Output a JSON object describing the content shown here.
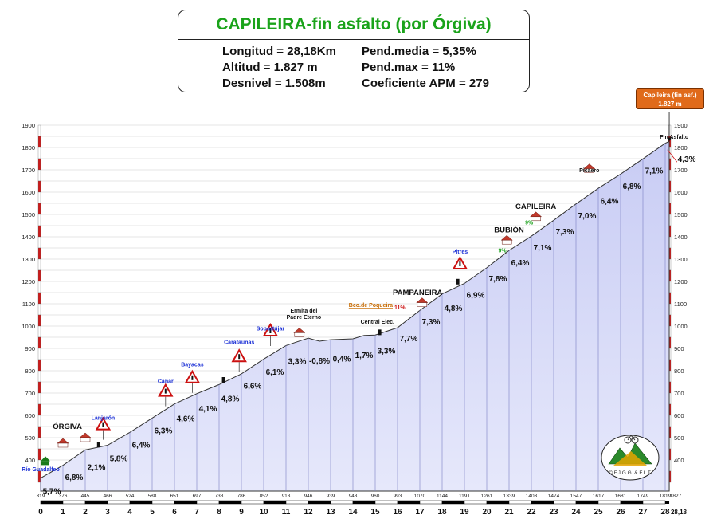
{
  "header": {
    "title": "CAPILEIRA-fin asfalto (por Órgiva)",
    "stats": [
      "Longitud = 28,18Km",
      "Pend.media = 5,35%",
      "Altitud =  1.827 m",
      "Pend.max = 11%",
      "Desnivel = 1.508m",
      "Coeficiente APM = 279"
    ]
  },
  "summit_badge": {
    "line1": "Capileira (fin asf.)",
    "line2": "1.827 m"
  },
  "copyright": "© F.J.G.G. & F.L.T.",
  "colors": {
    "title": "#1aa31a",
    "fill": "#cfd3f7",
    "outline": "#333333",
    "blue_label": "#1a2fd6",
    "green_label": "#18a018",
    "red_label": "#cc1111",
    "orange_label": "#c76a00",
    "badge": "#e06a1a"
  },
  "chart_data": {
    "type": "area",
    "title": "CAPILEIRA-fin asfalto (por Órgiva)",
    "xlim": [
      0,
      28.18
    ],
    "ylim": [
      200,
      1900
    ],
    "y_ticks": [
      400,
      500,
      600,
      700,
      800,
      900,
      1000,
      1100,
      1200,
      1300,
      1400,
      1500,
      1600,
      1700,
      1800,
      1900
    ],
    "x_ticks": [
      0,
      1,
      2,
      3,
      4,
      5,
      6,
      7,
      8,
      9,
      10,
      11,
      12,
      13,
      14,
      15,
      16,
      17,
      18,
      19,
      20,
      21,
      22,
      23,
      24,
      25,
      26,
      27,
      28
    ],
    "x_end_label": "28,18",
    "km_altitudes": [
      319,
      376,
      445,
      466,
      524,
      588,
      651,
      697,
      738,
      786,
      852,
      913,
      946,
      939,
      943,
      960,
      993,
      1070,
      1144,
      1191,
      1261,
      1339,
      1403,
      1474,
      1547,
      1617,
      1681,
      1749,
      1819
    ],
    "end_altitude_label": "1827",
    "profile": [
      [
        0,
        319
      ],
      [
        1,
        376
      ],
      [
        2,
        445
      ],
      [
        3,
        466
      ],
      [
        4,
        524
      ],
      [
        5,
        588
      ],
      [
        6,
        651
      ],
      [
        7,
        697
      ],
      [
        8,
        738
      ],
      [
        9,
        786
      ],
      [
        10,
        852
      ],
      [
        11,
        913
      ],
      [
        12,
        946
      ],
      [
        12.5,
        932
      ],
      [
        13,
        939
      ],
      [
        14,
        943
      ],
      [
        14.5,
        958
      ],
      [
        15,
        960
      ],
      [
        16,
        993
      ],
      [
        17,
        1070
      ],
      [
        18,
        1144
      ],
      [
        19,
        1191
      ],
      [
        20,
        1261
      ],
      [
        21,
        1339
      ],
      [
        22,
        1403
      ],
      [
        23,
        1474
      ],
      [
        24,
        1547
      ],
      [
        25,
        1617
      ],
      [
        26,
        1681
      ],
      [
        27,
        1749
      ],
      [
        28,
        1819
      ],
      [
        28.18,
        1827
      ]
    ],
    "gradients": [
      {
        "km": 0.5,
        "label": "5,7%"
      },
      {
        "km": 1.5,
        "label": "6,8%"
      },
      {
        "km": 2.5,
        "label": "2,1%"
      },
      {
        "km": 3.5,
        "label": "5,8%"
      },
      {
        "km": 4.5,
        "label": "6,4%"
      },
      {
        "km": 5.5,
        "label": "6,3%"
      },
      {
        "km": 6.5,
        "label": "4,6%"
      },
      {
        "km": 7.5,
        "label": "4,1%"
      },
      {
        "km": 8.5,
        "label": "4,8%"
      },
      {
        "km": 9.5,
        "label": "6,6%"
      },
      {
        "km": 10.5,
        "label": "6,1%"
      },
      {
        "km": 11.5,
        "label": "3,3%"
      },
      {
        "km": 12.5,
        "label": "-0,8%"
      },
      {
        "km": 13.5,
        "label": "0,4%"
      },
      {
        "km": 14.5,
        "label": "1,7%"
      },
      {
        "km": 15.5,
        "label": "3,3%"
      },
      {
        "km": 16.5,
        "label": "7,7%"
      },
      {
        "km": 17.5,
        "label": "7,3%"
      },
      {
        "km": 18.5,
        "label": "4,8%"
      },
      {
        "km": 19.5,
        "label": "6,9%"
      },
      {
        "km": 20.5,
        "label": "7,8%"
      },
      {
        "km": 21.5,
        "label": "6,4%"
      },
      {
        "km": 22.5,
        "label": "7,1%"
      },
      {
        "km": 23.5,
        "label": "7,3%"
      },
      {
        "km": 24.5,
        "label": "7,0%"
      },
      {
        "km": 25.5,
        "label": "6,4%"
      },
      {
        "km": 26.5,
        "label": "6,8%"
      },
      {
        "km": 27.5,
        "label": "7,1%"
      },
      {
        "km": 28.1,
        "label": "4,3%"
      }
    ],
    "places": [
      {
        "name": "Río Guadalfeo",
        "km": 0,
        "alt": 350,
        "style": "blue"
      },
      {
        "name": "ÓRGIVA",
        "km": 1.2,
        "alt": 540,
        "style": "black"
      },
      {
        "name": "Lanjarón",
        "km": 2.8,
        "alt": 580,
        "style": "blue"
      },
      {
        "name": "Cáñar",
        "km": 5.6,
        "alt": 745,
        "style": "blue"
      },
      {
        "name": "Bayacas",
        "km": 6.8,
        "alt": 820,
        "style": "blue"
      },
      {
        "name": "Carataunas",
        "km": 8.9,
        "alt": 920,
        "style": "blue"
      },
      {
        "name": "Soportújar",
        "km": 10.3,
        "alt": 980,
        "style": "blue"
      },
      {
        "name": "Ermita del",
        "km": 11.8,
        "alt": 1060,
        "style": "black"
      },
      {
        "name": "Padre Eterno",
        "km": 11.8,
        "alt": 1032,
        "style": "black"
      },
      {
        "name": "Central Elec.",
        "km": 15.1,
        "alt": 1010,
        "style": "black"
      },
      {
        "name": "Bco.de Poqueira",
        "km": 14.8,
        "alt": 1085,
        "style": "orange"
      },
      {
        "name": "11%",
        "km": 16.1,
        "alt": 1075,
        "style": "red"
      },
      {
        "name": "PAMPANEIRA",
        "km": 16.9,
        "alt": 1140,
        "style": "black"
      },
      {
        "name": "Pitres",
        "km": 18.8,
        "alt": 1325,
        "style": "blue"
      },
      {
        "name": "9%",
        "km": 20.7,
        "alt": 1330,
        "style": "green"
      },
      {
        "name": "BUBIÓN",
        "km": 21.0,
        "alt": 1420,
        "style": "black"
      },
      {
        "name": "9%",
        "km": 21.9,
        "alt": 1455,
        "style": "green"
      },
      {
        "name": "CAPILEIRA",
        "km": 22.2,
        "alt": 1525,
        "style": "black"
      },
      {
        "name": "Picaero",
        "km": 24.6,
        "alt": 1690,
        "style": "black"
      },
      {
        "name": "Fin Asfalto",
        "km": 28.4,
        "alt": 1840,
        "style": "black"
      }
    ]
  }
}
